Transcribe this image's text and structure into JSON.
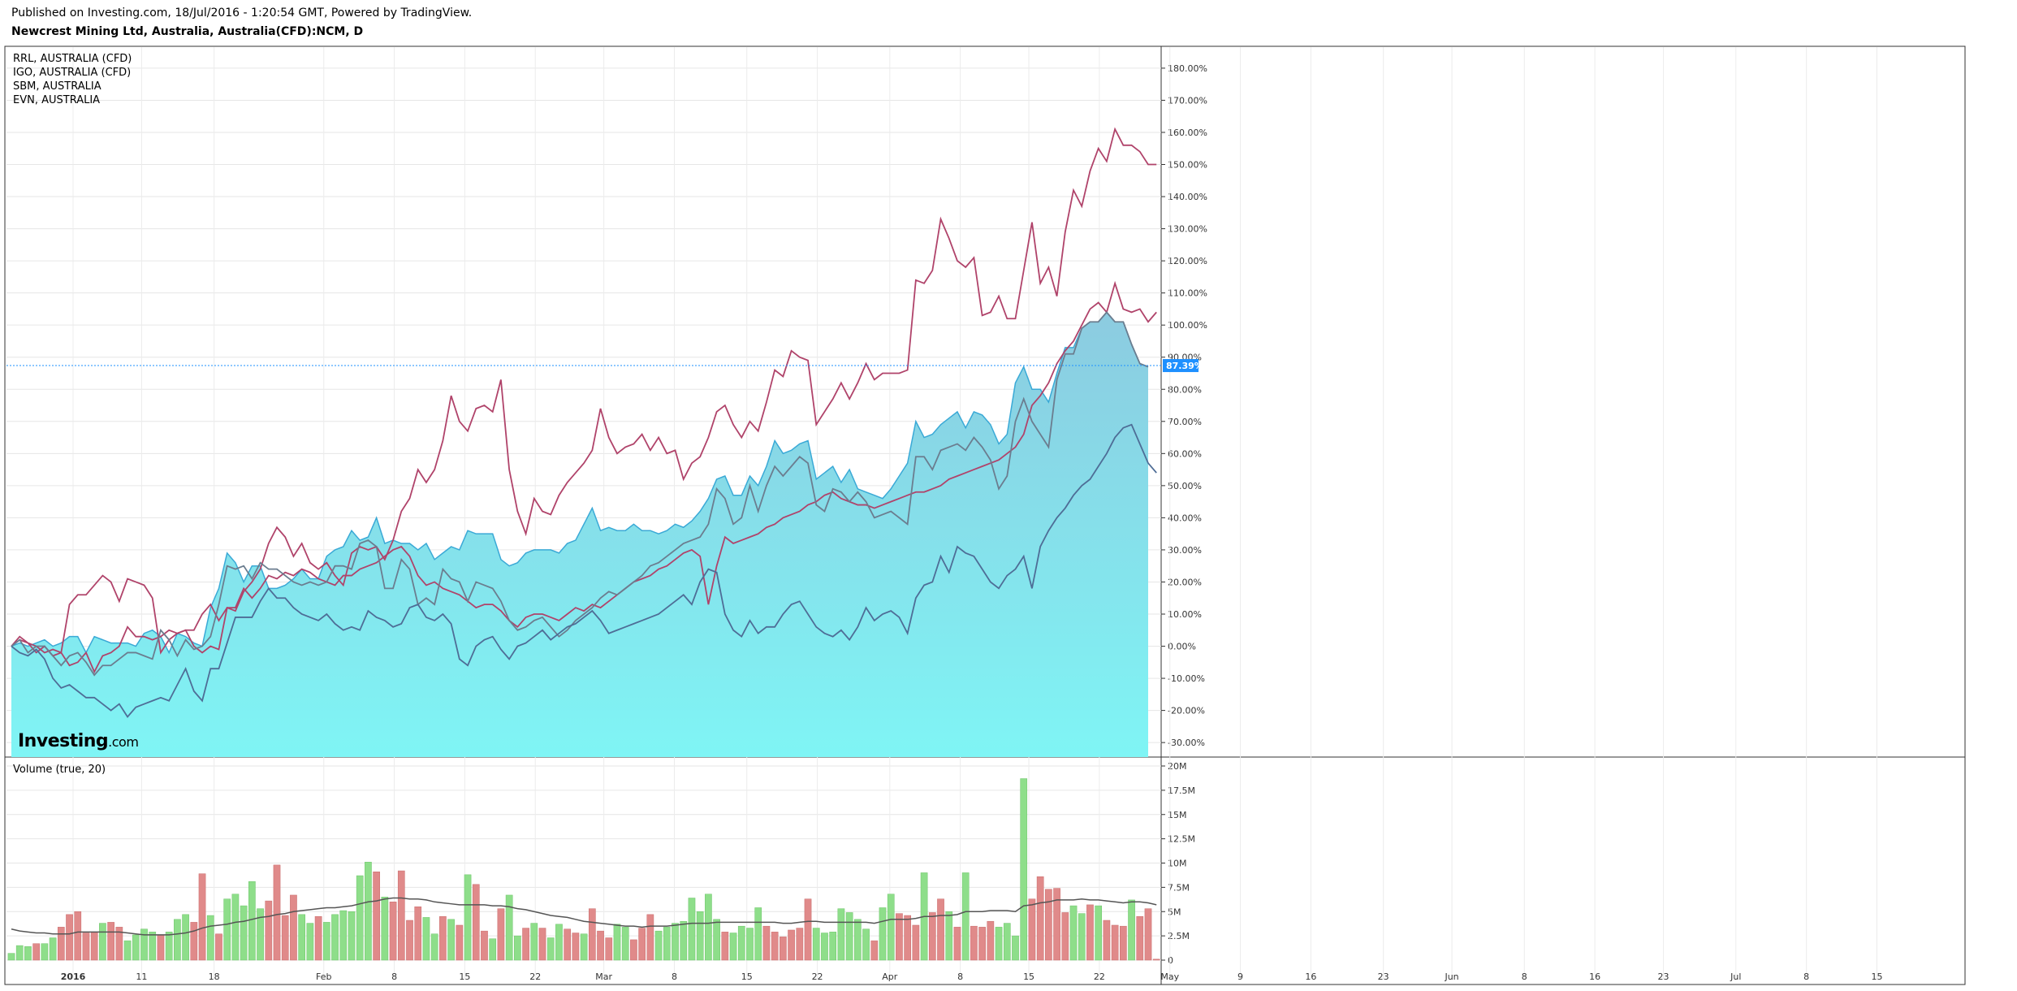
{
  "header": {
    "published": "Published on Investing.com, 18/Jul/2016 - 1:20:54 GMT, Powered by TradingView.",
    "title": "Newcrest Mining Ltd, Australia, Australia(CFD):NCM, D"
  },
  "legend": [
    "RRL, AUSTRALIA (CFD)",
    "IGO, AUSTRALIA (CFD)",
    "SBM, AUSTRALIA",
    "EVN, AUSTRALIA"
  ],
  "logo": {
    "main": "Investing",
    "suffix": ".com"
  },
  "volume_label": "Volume (true, 20)",
  "current_value_label": "87.39%",
  "colors": {
    "area_fill_bottom": "#7ff5f5",
    "area_fill_top": "#8ccbe0",
    "area_line": "#3aa9d6",
    "rrl": "#b0436a",
    "igo": "#b0436a",
    "sbm": "#6b7d8f",
    "evn": "#4e6d96",
    "volume_up": "#8ede8a",
    "volume_down": "#e08a8a",
    "volume_ma": "#555555",
    "price_line": "#1e90ff"
  },
  "chart_data": [
    {
      "type": "line",
      "title": "Newcrest Mining Ltd, Australia, Australia(CFD):NCM, D",
      "x_tick_labels": [
        "2016",
        "11",
        "18",
        "Feb",
        "8",
        "15",
        "22",
        "Mar",
        "8",
        "15",
        "22",
        "Apr",
        "8",
        "15",
        "22",
        "May",
        "9",
        "16",
        "23",
        "Jun",
        "8",
        "16",
        "23",
        "Jul",
        "8",
        "15"
      ],
      "y_tick_labels": [
        "180.00%",
        "170.00%",
        "160.00%",
        "150.00%",
        "140.00%",
        "130.00%",
        "120.00%",
        "110.00%",
        "100.00%",
        "90.00%",
        "80.00%",
        "70.00%",
        "60.00%",
        "50.00%",
        "40.00%",
        "30.00%",
        "20.00%",
        "10.00%",
        "0.00%",
        "-10.00%",
        "-20.00%",
        "-30.00%"
      ],
      "ylim": [
        -33,
        182
      ],
      "y_unit": "%",
      "grid": true,
      "legend_position": "top-left",
      "series": [
        {
          "name": "NCM",
          "style": "area",
          "values": [
            0,
            1,
            0,
            1,
            2,
            0,
            1,
            3,
            3,
            -2,
            3,
            2,
            1,
            1,
            1,
            0,
            4,
            5,
            3,
            -2,
            4,
            3,
            1,
            0,
            12,
            18,
            29,
            26,
            20,
            25,
            25,
            18,
            18,
            19,
            21,
            24,
            21,
            21,
            28,
            30,
            31,
            36,
            33,
            34,
            40,
            32,
            33,
            32,
            32,
            30,
            32,
            27,
            29,
            31,
            30,
            36,
            35,
            35,
            35,
            27,
            25,
            26,
            29,
            30,
            30,
            30,
            29,
            32,
            33,
            38,
            43,
            36,
            37,
            36,
            36,
            38,
            36,
            36,
            35,
            36,
            38,
            37,
            39,
            42,
            46,
            52,
            53,
            47,
            47,
            53,
            50,
            56,
            64,
            60,
            61,
            63,
            64,
            52,
            54,
            56,
            51,
            55,
            49,
            48,
            47,
            46,
            49,
            53,
            57,
            70,
            65,
            66,
            69,
            71,
            73,
            68,
            73,
            72,
            69,
            63,
            66,
            82,
            87,
            80,
            80,
            76,
            85,
            93,
            93,
            99,
            101,
            101,
            104,
            101,
            101,
            94,
            88,
            87
          ]
        },
        {
          "name": "RRL, AUSTRALIA (CFD)",
          "values": [
            0,
            3,
            1,
            0,
            -2,
            -1,
            -2,
            13,
            16,
            16,
            19,
            22,
            20,
            14,
            21,
            20,
            19,
            15,
            -2,
            2,
            4,
            5,
            5,
            10,
            13,
            8,
            12,
            11,
            17,
            20,
            24,
            32,
            37,
            34,
            28,
            32,
            26,
            24,
            26,
            22,
            19,
            29,
            31,
            30,
            31,
            27,
            33,
            42,
            46,
            55,
            51,
            55,
            64,
            78,
            70,
            67,
            74,
            75,
            73,
            83,
            55,
            42,
            35,
            46,
            42,
            41,
            47,
            51,
            54,
            57,
            61,
            74,
            65,
            60,
            62,
            63,
            66,
            61,
            65,
            60,
            61,
            52,
            57,
            59,
            65,
            73,
            75,
            69,
            65,
            70,
            67,
            76,
            86,
            84,
            92,
            90,
            89,
            69,
            73,
            77,
            82,
            77,
            82,
            88,
            83,
            85,
            85,
            85,
            86,
            114,
            113,
            117,
            133,
            127,
            120,
            118,
            121,
            103,
            104,
            109,
            102,
            102,
            117,
            132,
            113,
            118,
            109,
            129,
            142,
            137,
            148,
            155,
            151,
            161,
            156,
            156,
            154,
            150,
            150
          ]
        },
        {
          "name": "IGO, AUSTRALIA (CFD)",
          "values": [
            0,
            2,
            1,
            -2,
            0,
            -3,
            -2,
            -6,
            -5,
            -2,
            -8,
            -3,
            -2,
            0,
            6,
            3,
            3,
            2,
            3,
            5,
            4,
            5,
            0,
            -2,
            0,
            -1,
            12,
            12,
            18,
            15,
            18,
            22,
            21,
            23,
            22,
            24,
            23,
            21,
            20,
            19,
            22,
            22,
            24,
            25,
            26,
            28,
            30,
            31,
            28,
            22,
            19,
            20,
            18,
            17,
            16,
            14,
            12,
            13,
            13,
            11,
            8,
            6,
            9,
            10,
            10,
            9,
            8,
            10,
            12,
            11,
            13,
            12,
            14,
            16,
            18,
            20,
            21,
            22,
            24,
            25,
            27,
            29,
            30,
            28,
            13,
            25,
            34,
            32,
            33,
            34,
            35,
            37,
            38,
            40,
            41,
            42,
            44,
            45,
            47,
            48,
            46,
            45,
            44,
            44,
            43,
            44,
            45,
            46,
            47,
            48,
            48,
            49,
            50,
            52,
            53,
            54,
            55,
            56,
            57,
            58,
            60,
            62,
            66,
            75,
            78,
            82,
            88,
            92,
            95,
            100,
            105,
            107,
            104,
            113,
            105,
            104,
            105,
            101,
            104
          ]
        },
        {
          "name": "SBM, AUSTRALIA",
          "values": [
            0,
            2,
            -2,
            0,
            0,
            -3,
            -6,
            -3,
            -2,
            -5,
            -9,
            -6,
            -6,
            -4,
            -2,
            -2,
            -3,
            -4,
            5,
            2,
            -3,
            2,
            -1,
            0,
            3,
            13,
            25,
            24,
            25,
            21,
            26,
            24,
            24,
            22,
            20,
            19,
            20,
            19,
            20,
            25,
            25,
            24,
            32,
            33,
            31,
            18,
            18,
            27,
            24,
            13,
            15,
            13,
            24,
            21,
            20,
            14,
            20,
            19,
            18,
            14,
            8,
            5,
            6,
            8,
            9,
            6,
            3,
            5,
            8,
            10,
            12,
            15,
            17,
            16,
            18,
            20,
            22,
            25,
            26,
            28,
            30,
            32,
            33,
            34,
            38,
            49,
            46,
            38,
            40,
            50,
            42,
            50,
            56,
            53,
            56,
            59,
            57,
            44,
            42,
            49,
            48,
            45,
            48,
            45,
            40,
            41,
            42,
            40,
            38,
            59,
            59,
            55,
            61,
            62,
            63,
            61,
            65,
            62,
            58,
            49,
            53,
            70,
            77,
            70,
            66,
            62,
            83,
            91,
            91,
            99,
            101,
            101,
            104,
            101,
            101,
            94,
            88,
            87
          ]
        },
        {
          "name": "EVN, AUSTRALIA",
          "values": [
            0,
            -2,
            -3,
            -1,
            -4,
            -10,
            -13,
            -12,
            -14,
            -16,
            -16,
            -18,
            -20,
            -18,
            -22,
            -19,
            -18,
            -17,
            -16,
            -17,
            -12,
            -7,
            -14,
            -17,
            -7,
            -7,
            1,
            9,
            9,
            9,
            14,
            18,
            15,
            15,
            12,
            10,
            9,
            8,
            10,
            7,
            5,
            6,
            5,
            11,
            9,
            8,
            6,
            7,
            12,
            13,
            9,
            8,
            10,
            7,
            -4,
            -6,
            0,
            2,
            3,
            -1,
            -4,
            0,
            1,
            3,
            5,
            2,
            4,
            6,
            7,
            9,
            11,
            8,
            4,
            5,
            6,
            7,
            8,
            9,
            10,
            12,
            14,
            16,
            13,
            20,
            24,
            23,
            10,
            5,
            3,
            8,
            4,
            6,
            6,
            10,
            13,
            14,
            10,
            6,
            4,
            3,
            5,
            2,
            6,
            12,
            8,
            10,
            11,
            9,
            4,
            15,
            19,
            20,
            28,
            23,
            31,
            29,
            28,
            24,
            20,
            18,
            22,
            24,
            28,
            18,
            31,
            36,
            40,
            43,
            47,
            50,
            52,
            56,
            60,
            65,
            68,
            69,
            63,
            57,
            54
          ]
        }
      ],
      "current_value": 87.39
    },
    {
      "type": "bar",
      "title": "Volume (true, 20)",
      "y_tick_labels": [
        "20M",
        "17.5M",
        "15M",
        "12.5M",
        "10M",
        "7.5M",
        "5M",
        "2.5M",
        "0"
      ],
      "ylim": [
        0,
        20
      ],
      "y_unit": "M",
      "values": [
        0.7,
        1.5,
        1.4,
        1.7,
        1.7,
        2.3,
        3.4,
        4.7,
        5.0,
        2.8,
        2.9,
        3.8,
        3.9,
        3.4,
        2.0,
        2.6,
        3.2,
        2.9,
        2.6,
        2.9,
        4.2,
        4.7,
        3.9,
        8.9,
        4.6,
        2.7,
        6.3,
        6.8,
        5.6,
        8.1,
        5.3,
        6.1,
        9.8,
        4.6,
        6.7,
        4.7,
        3.8,
        4.5,
        3.9,
        4.7,
        5.1,
        5.0,
        8.7,
        10.1,
        9.1,
        6.5,
        6.0,
        9.2,
        4.1,
        5.5,
        4.4,
        2.7,
        4.5,
        4.2,
        3.6,
        8.8,
        7.8,
        3.0,
        2.2,
        5.3,
        6.7,
        2.5,
        3.3,
        3.8,
        3.3,
        2.3,
        3.7,
        3.2,
        2.8,
        2.7,
        5.3,
        3.0,
        2.3,
        3.7,
        3.4,
        2.1,
        3.3,
        4.7,
        3.0,
        3.4,
        3.8,
        4.0,
        6.4,
        5.0,
        6.8,
        4.2,
        2.9,
        2.8,
        3.5,
        3.3,
        5.4,
        3.5,
        2.9,
        2.4,
        3.1,
        3.3,
        6.3,
        3.3,
        2.8,
        2.9,
        5.3,
        4.9,
        4.2,
        3.2,
        2.0,
        5.4,
        6.8,
        4.8,
        4.6,
        3.6,
        9.0,
        4.9,
        6.3,
        5.0,
        3.4,
        9.0,
        3.5,
        3.4,
        4.0,
        3.4,
        3.8,
        2.5,
        18.7,
        6.3,
        8.6,
        7.3,
        7.4,
        4.9,
        5.6,
        4.8,
        5.7,
        5.6,
        4.1,
        3.6,
        3.5,
        6.2,
        4.5,
        5.3,
        0.1
      ],
      "direction": [
        "up",
        "up",
        "up",
        "down",
        "up",
        "up",
        "down",
        "down",
        "down",
        "down",
        "down",
        "up",
        "down",
        "down",
        "up",
        "up",
        "up",
        "up",
        "down",
        "up",
        "up",
        "up",
        "down",
        "down",
        "up",
        "down",
        "up",
        "up",
        "up",
        "up",
        "up",
        "down",
        "down",
        "down",
        "down",
        "up",
        "up",
        "down",
        "up",
        "up",
        "up",
        "up",
        "up",
        "up",
        "down",
        "up",
        "down",
        "down",
        "down",
        "down",
        "up",
        "up",
        "down",
        "up",
        "down",
        "up",
        "down",
        "down",
        "up",
        "down",
        "up",
        "up",
        "down",
        "up",
        "down",
        "up",
        "up",
        "down",
        "down",
        "up",
        "down",
        "down",
        "down",
        "up",
        "up",
        "down",
        "down",
        "down",
        "up",
        "up",
        "up",
        "up",
        "up",
        "up",
        "up",
        "up",
        "down",
        "up",
        "up",
        "up",
        "up",
        "down",
        "down",
        "down",
        "down",
        "down",
        "down",
        "up",
        "up",
        "up",
        "up",
        "up",
        "up",
        "up",
        "down",
        "up",
        "up",
        "down",
        "down",
        "down",
        "up",
        "down",
        "down",
        "up",
        "down",
        "up",
        "down",
        "down",
        "down",
        "up",
        "up",
        "up",
        "up",
        "down",
        "down",
        "down",
        "down",
        "down",
        "up",
        "up",
        "down",
        "up",
        "down",
        "down",
        "down",
        "up",
        "down",
        "down",
        "down"
      ],
      "moving_average": {
        "name": "MA 20",
        "values": [
          3.2,
          3.0,
          2.9,
          2.8,
          2.8,
          2.7,
          2.7,
          2.7,
          2.9,
          2.9,
          2.9,
          2.9,
          2.9,
          2.9,
          2.8,
          2.7,
          2.6,
          2.6,
          2.6,
          2.6,
          2.7,
          2.8,
          3.0,
          3.3,
          3.5,
          3.6,
          3.7,
          3.9,
          4.0,
          4.2,
          4.4,
          4.5,
          4.7,
          4.8,
          5.0,
          5.1,
          5.2,
          5.3,
          5.4,
          5.4,
          5.5,
          5.6,
          5.8,
          6.0,
          6.1,
          6.3,
          6.4,
          6.4,
          6.3,
          6.3,
          6.2,
          6.0,
          5.9,
          5.8,
          5.7,
          5.7,
          5.7,
          5.7,
          5.6,
          5.6,
          5.5,
          5.3,
          5.2,
          5.0,
          4.8,
          4.6,
          4.5,
          4.4,
          4.2,
          4.0,
          3.9,
          3.8,
          3.7,
          3.6,
          3.5,
          3.5,
          3.4,
          3.5,
          3.5,
          3.5,
          3.6,
          3.7,
          3.8,
          3.8,
          3.8,
          3.9,
          3.9,
          3.9,
          3.9,
          3.9,
          3.9,
          3.9,
          3.9,
          3.8,
          3.8,
          3.9,
          4.0,
          4.0,
          3.9,
          3.9,
          3.9,
          3.9,
          3.9,
          3.9,
          3.8,
          4.0,
          4.2,
          4.2,
          4.2,
          4.3,
          4.5,
          4.5,
          4.6,
          4.6,
          4.7,
          5.0,
          5.0,
          5.0,
          5.1,
          5.1,
          5.1,
          5.0,
          5.6,
          5.7,
          5.9,
          6.0,
          6.2,
          6.2,
          6.2,
          6.3,
          6.2,
          6.2,
          6.1,
          6.0,
          5.9,
          6.0,
          6.0,
          5.9,
          5.7
        ]
      }
    }
  ]
}
